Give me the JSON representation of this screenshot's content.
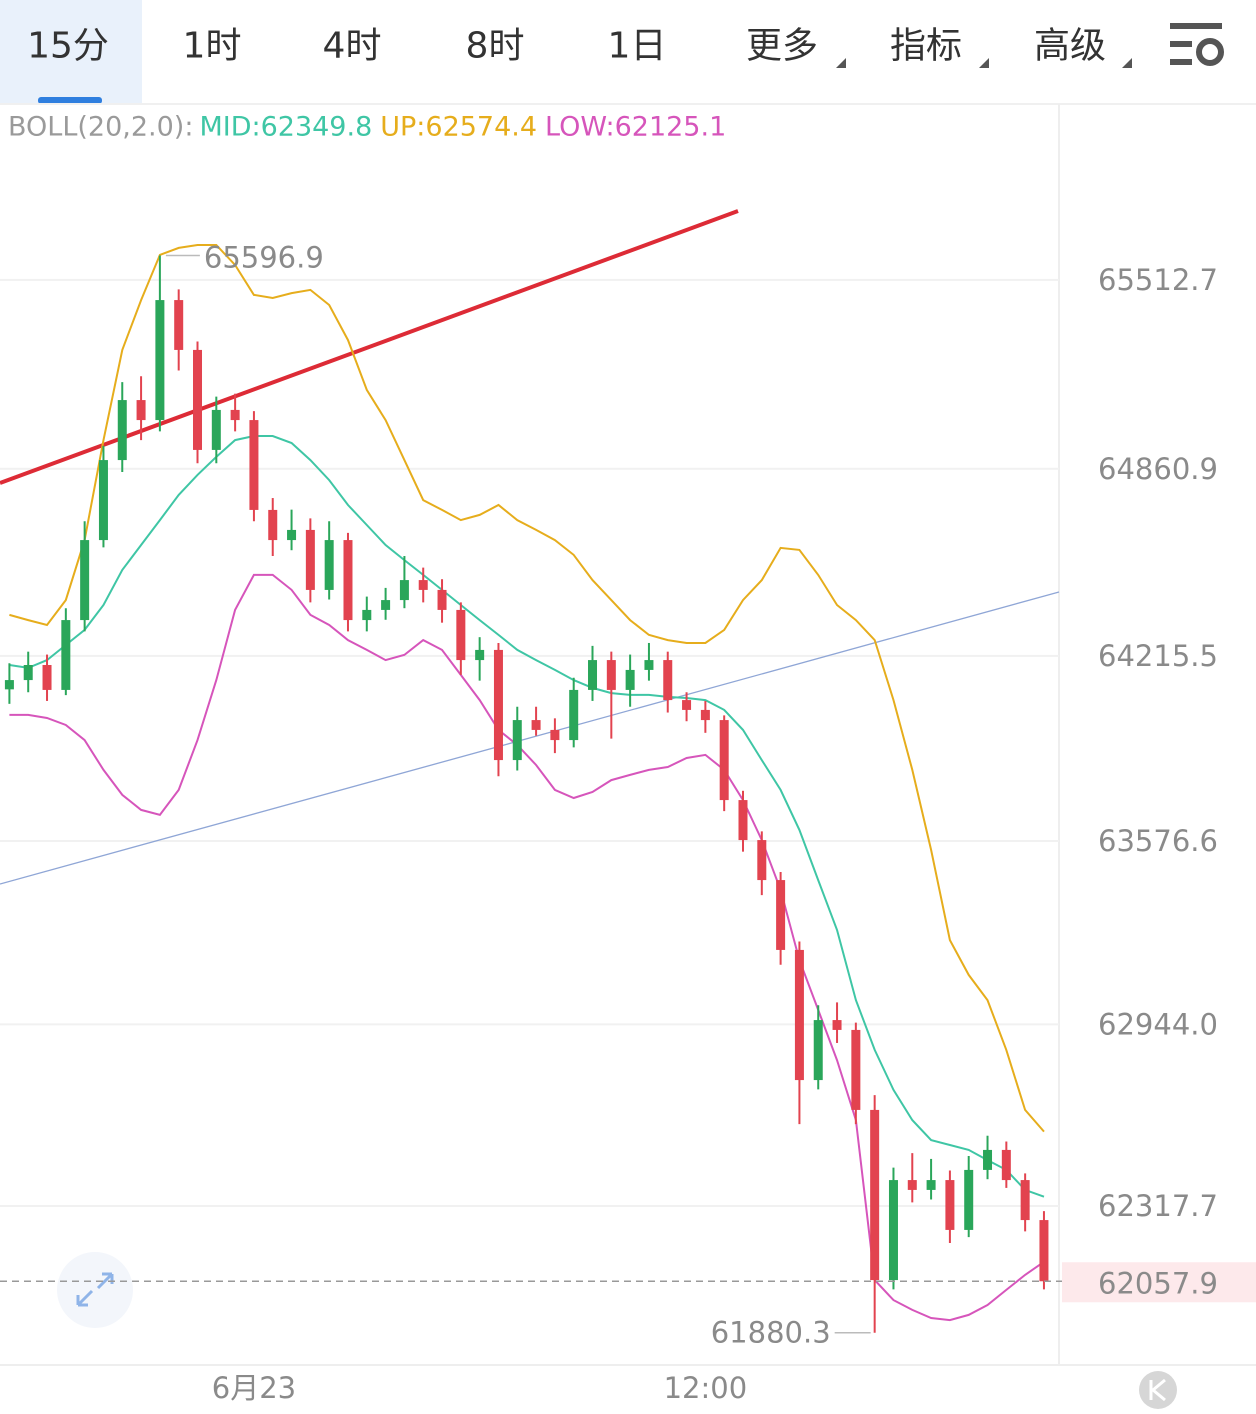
{
  "tabs": [
    "15分",
    "1时",
    "4时",
    "8时",
    "1日",
    "更多",
    "指标",
    "高级"
  ],
  "active_tab": 0,
  "chart_data": {
    "type": "candlestick",
    "title": "BOLL(20,2.0):",
    "categories": [
      null,
      null,
      null,
      null,
      null,
      null,
      null,
      null,
      null,
      null,
      null,
      null,
      null,
      "6月23",
      null,
      null,
      null,
      null,
      null,
      null,
      null,
      null,
      null,
      null,
      null,
      null,
      null,
      null,
      null,
      null,
      null,
      null,
      null,
      null,
      null,
      null,
      null,
      "12:00",
      null,
      null,
      null,
      null,
      null,
      null,
      null,
      null,
      null,
      null,
      null,
      null,
      null,
      null,
      null,
      null,
      null,
      null
    ],
    "candles": [
      [
        64100,
        64190,
        64050,
        64132
      ],
      [
        64132,
        64230,
        64090,
        64184
      ],
      [
        64184,
        64220,
        64060,
        64098
      ],
      [
        64098,
        64380,
        64080,
        64339
      ],
      [
        64339,
        64680,
        64300,
        64615
      ],
      [
        64615,
        64940,
        64590,
        64891
      ],
      [
        64891,
        65160,
        64850,
        65098
      ],
      [
        65098,
        65180,
        64960,
        65029
      ],
      [
        65029,
        65596.9,
        64990,
        65443
      ],
      [
        65443,
        65480,
        65200,
        65271
      ],
      [
        65271,
        65300,
        64880,
        64926
      ],
      [
        64926,
        65110,
        64880,
        65064
      ],
      [
        65064,
        65120,
        64990,
        65029
      ],
      [
        65029,
        65060,
        64680,
        64719
      ],
      [
        64719,
        64760,
        64560,
        64615
      ],
      [
        64615,
        64720,
        64580,
        64650
      ],
      [
        64650,
        64690,
        64400,
        64443
      ],
      [
        64443,
        64680,
        64410,
        64615
      ],
      [
        64615,
        64640,
        64300,
        64339
      ],
      [
        64339,
        64420,
        64300,
        64374
      ],
      [
        64374,
        64450,
        64340,
        64408
      ],
      [
        64408,
        64560,
        64380,
        64477
      ],
      [
        64477,
        64520,
        64400,
        64443
      ],
      [
        64443,
        64480,
        64330,
        64374
      ],
      [
        64374,
        64400,
        64150,
        64201
      ],
      [
        64201,
        64280,
        64130,
        64236
      ],
      [
        64236,
        64260,
        63800,
        63856
      ],
      [
        63856,
        64040,
        63820,
        63994
      ],
      [
        63994,
        64040,
        63940,
        63960
      ],
      [
        63960,
        64000,
        63880,
        63925
      ],
      [
        63925,
        64140,
        63900,
        64098
      ],
      [
        64098,
        64250,
        64060,
        64201
      ],
      [
        64201,
        64230,
        63930,
        64098
      ],
      [
        64098,
        64220,
        64040,
        64167
      ],
      [
        64167,
        64260,
        64130,
        64201
      ],
      [
        64201,
        64230,
        64020,
        64063
      ],
      [
        64063,
        64090,
        63990,
        64029
      ],
      [
        64029,
        64060,
        63950,
        63994
      ],
      [
        63994,
        64010,
        63680,
        63718
      ],
      [
        63718,
        63750,
        63540,
        63580
      ],
      [
        63580,
        63610,
        63390,
        63442
      ],
      [
        63442,
        63470,
        63150,
        63201
      ],
      [
        63201,
        63230,
        62600,
        62752
      ],
      [
        62752,
        63010,
        62720,
        62959
      ],
      [
        62959,
        63020,
        62880,
        62925
      ],
      [
        62925,
        62950,
        62600,
        62649
      ],
      [
        62649,
        62700,
        61880.3,
        62062
      ],
      [
        62062,
        62450,
        62030,
        62407
      ],
      [
        62407,
        62500,
        62330,
        62373
      ],
      [
        62373,
        62480,
        62340,
        62407
      ],
      [
        62407,
        62440,
        62190,
        62235
      ],
      [
        62235,
        62490,
        62210,
        62442
      ],
      [
        62442,
        62560,
        62410,
        62511
      ],
      [
        62511,
        62540,
        62380,
        62407
      ],
      [
        62407,
        62430,
        62230,
        62269
      ],
      [
        62269,
        62300,
        62030,
        62057.9
      ]
    ],
    "up_color": "#2aa65a",
    "down_color": "#e2434f",
    "series": [
      {
        "name": "MID:",
        "color": "#3fc6a5",
        "values": [
          64184,
          64174,
          64201,
          64253,
          64305,
          64391,
          64512,
          64598,
          64684,
          64771,
          64840,
          64902,
          64960,
          64974,
          64974,
          64950,
          64891,
          64822,
          64736,
          64667,
          64598,
          64546,
          64495,
          64443,
          64391,
          64339,
          64288,
          64236,
          64201,
          64167,
          64132,
          64105,
          64087,
          64081,
          64081,
          64074,
          64070,
          64063,
          64029,
          63960,
          63856,
          63753,
          63615,
          63442,
          63270,
          63028,
          62856,
          62718,
          62614,
          62545,
          62528,
          62511,
          62476,
          62442,
          62373,
          62349.8
        ]
      },
      {
        "name": "UP:",
        "color": "#e6ad1c",
        "values": [
          64357,
          64339,
          64322,
          64408,
          64615,
          64960,
          65271,
          65443,
          65599,
          65623,
          65633,
          65633,
          65564,
          65461,
          65450,
          65467,
          65478,
          65426,
          65305,
          65133,
          65029,
          64891,
          64753,
          64719,
          64684,
          64702,
          64736,
          64684,
          64650,
          64615,
          64564,
          64477,
          64408,
          64339,
          64288,
          64270,
          64260,
          64260,
          64305,
          64408,
          64477,
          64588,
          64581,
          64495,
          64391,
          64339,
          64270,
          64063,
          63822,
          63546,
          63235,
          63115,
          63028,
          62856,
          62649,
          62574.4
        ]
      },
      {
        "name": "LOW:",
        "color": "#d655bb",
        "values": [
          64012,
          64012,
          64001,
          63977,
          63925,
          63822,
          63736,
          63684,
          63667,
          63753,
          63925,
          64132,
          64374,
          64495,
          64495,
          64443,
          64357,
          64322,
          64270,
          64236,
          64201,
          64219,
          64270,
          64236,
          64150,
          64063,
          63960,
          63908,
          63839,
          63753,
          63725,
          63746,
          63787,
          63805,
          63822,
          63832,
          63863,
          63874,
          63822,
          63718,
          63580,
          63408,
          63166,
          62994,
          62821,
          62614,
          62062,
          61993,
          61959,
          61931,
          61924,
          61942,
          61976,
          62028,
          62080,
          62125.1
        ]
      }
    ],
    "ylim": [
      61769,
      66116
    ],
    "yticks": [
      65512.7,
      64860.9,
      64215.5,
      63576.6,
      {
        "value": 62944.0,
        "label": "62944.0"
      },
      62317.7
    ],
    "grid": true
  }
}
